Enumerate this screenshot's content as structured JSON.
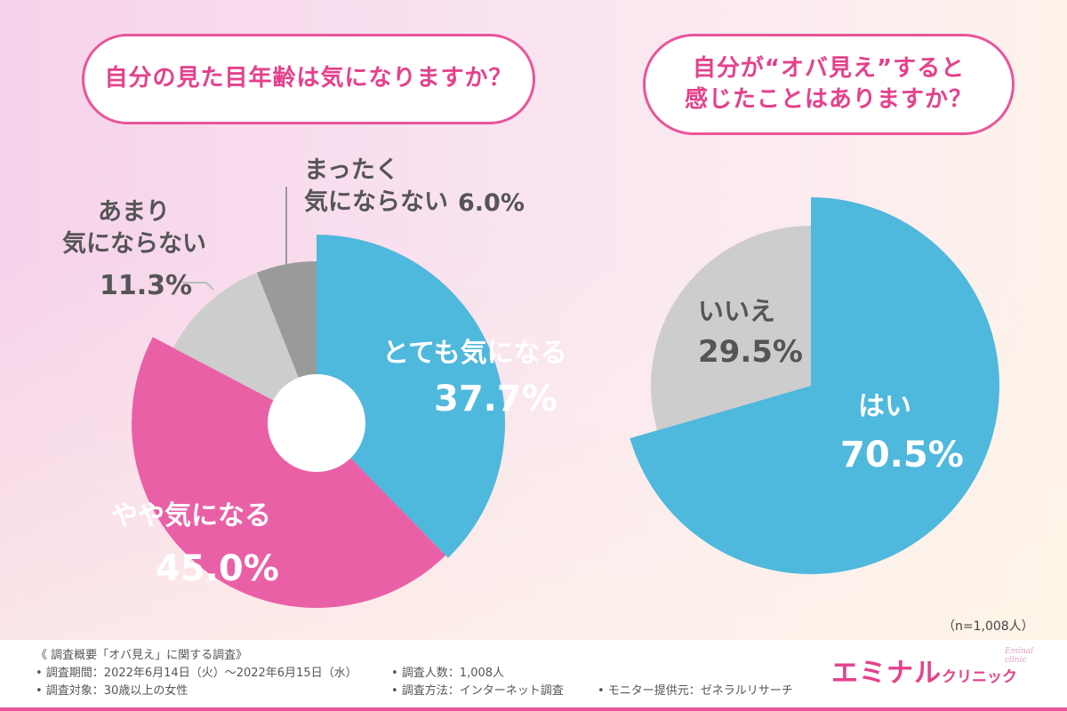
{
  "chart_data": [
    {
      "type": "pie",
      "title": "自分の見た目年齢は気になりますか？",
      "slices": [
        {
          "label": "とても気になる",
          "value_text": "37.7%",
          "value": 37.7,
          "color": "#4fb8dd"
        },
        {
          "label": "やや気になる",
          "value_text": "45.0%",
          "value": 45.0,
          "color": "#e960a7"
        },
        {
          "label": "あまり気にならない",
          "value_text": "11.3%",
          "value": 11.3,
          "color": "#cdcdcd"
        },
        {
          "label": "まったく気にならない",
          "value_text": "6.0%",
          "value": 6.0,
          "color": "#9a9a9a"
        }
      ]
    },
    {
      "type": "pie",
      "title": "自分が“オバ見え”すると感じたことはありますか？",
      "slices": [
        {
          "label": "はい",
          "value_text": "70.5%",
          "value": 70.5,
          "color": "#4fb8dd"
        },
        {
          "label": "いいえ",
          "value_text": "29.5%",
          "value": 29.5,
          "color": "#cdcdcd"
        }
      ]
    }
  ],
  "questions": {
    "q1": "自分の見た目年齢は気になりますか？",
    "q2_line1": "自分が“オバ見え”すると",
    "q2_line2": "感じたことはありますか？"
  },
  "labels": {
    "very": "とても気になる",
    "very_pct": "37.7%",
    "somewhat": "やや気になる",
    "somewhat_pct": "45.0%",
    "notmuch_l1": "あまり",
    "notmuch_l2": "気にならない",
    "notmuch_pct": "11.3%",
    "notatall_l1": "まったく",
    "notatall_l2": "気にならない",
    "notatall_pct": "6.0%",
    "yes": "はい",
    "yes_pct": "70.5%",
    "no": "いいえ",
    "no_pct": "29.5%"
  },
  "sample_note": "（n=1,008人）",
  "footer": {
    "title": "《 調査概要「オバ見え」に関する調査》",
    "period": "• 調査期間：2022年6月14日（火）～2022年6月15日（水）",
    "target": "• 調査対象：30歳以上の女性",
    "count": "• 調査人数：1,008人",
    "method": "• 調査方法：インターネット調査",
    "provider": "• モニター提供元：ゼネラルリサーチ"
  },
  "logo": {
    "main": "エミナル",
    "sub": "クリニック",
    "tiny": "Eminal clinic"
  },
  "colors": {
    "accent_pink": "#e8559a",
    "blue": "#4fb8dd",
    "pink": "#e960a7",
    "light_gray": "#cdcdcd",
    "dark_gray": "#9a9a9a"
  }
}
